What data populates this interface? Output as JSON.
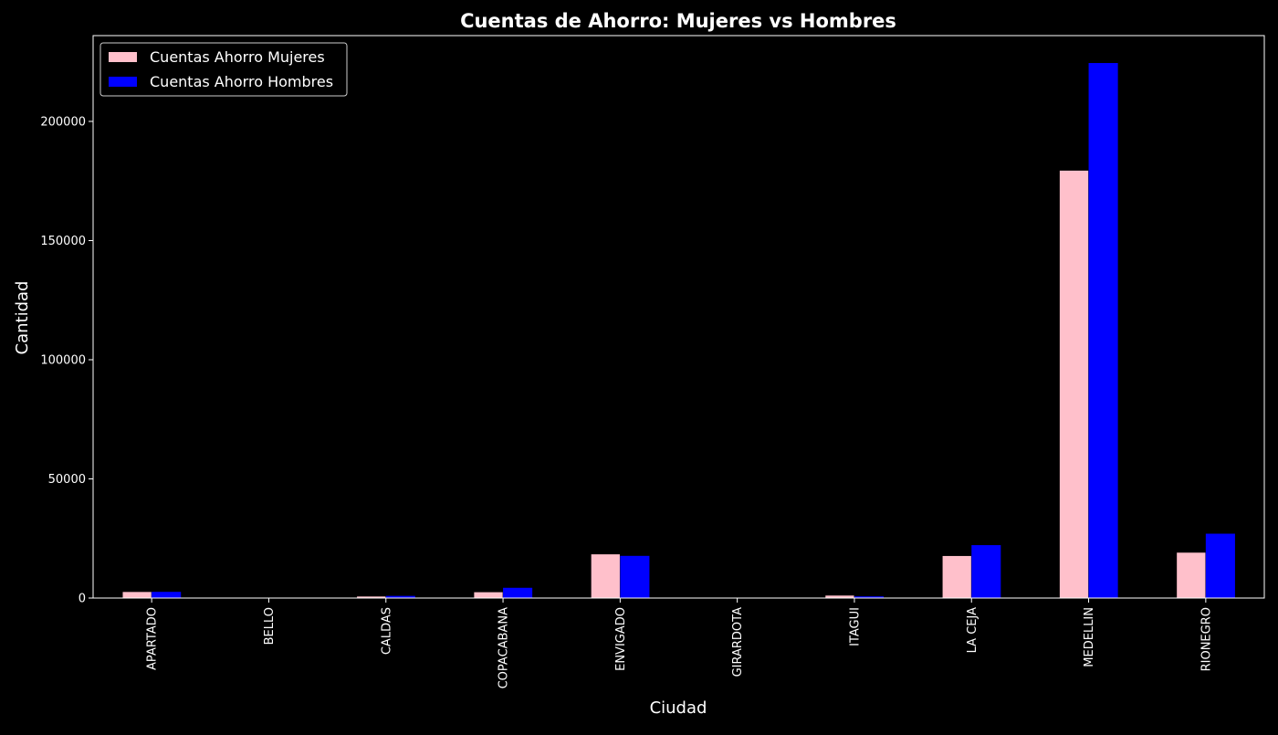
{
  "chart_data": {
    "type": "bar",
    "title": "Cuentas de Ahorro: Mujeres vs Hombres",
    "xlabel": "Ciudad",
    "ylabel": "Cantidad",
    "categories": [
      "APARTADO",
      "BELLO",
      "CALDAS",
      "COPACABANA",
      "ENVIGADO",
      "GIRARDOTA",
      "ITAGUI",
      "LA CEJA",
      "MEDELLIN",
      "RIONEGRO"
    ],
    "series": [
      {
        "name": "Cuentas Ahorro Mujeres",
        "color": "#ffc0cb",
        "values": [
          2700,
          0,
          800,
          2600,
          18500,
          0,
          1200,
          17800,
          179500,
          19200
        ]
      },
      {
        "name": "Cuentas Ahorro Hombres",
        "color": "#0000ff",
        "values": [
          2600,
          0,
          900,
          4300,
          17700,
          0,
          700,
          22200,
          224500,
          27000
        ]
      }
    ],
    "ylim": [
      0,
      236000
    ],
    "yticks": [
      0,
      50000,
      100000,
      150000,
      200000
    ],
    "ytick_labels": [
      "0",
      "50000",
      "100000",
      "150000",
      "200000"
    ],
    "legend_position": "top-left",
    "grid": false,
    "background": "#000000",
    "foreground": "#ffffff"
  }
}
